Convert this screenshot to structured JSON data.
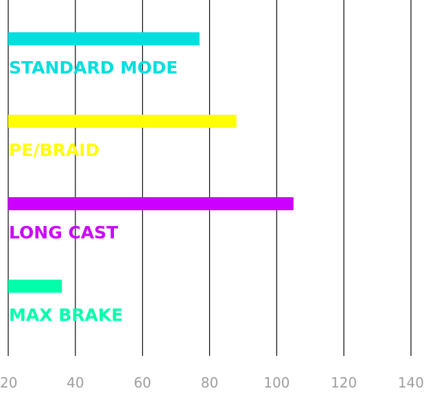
{
  "chart_data": {
    "type": "bar",
    "orientation": "horizontal",
    "categories": [
      "STANDARD MODE",
      "PE/BRAID",
      "LONG CAST",
      "MAX BRAKE"
    ],
    "values": [
      77,
      88,
      105,
      36
    ],
    "colors": [
      "#00dede",
      "#ffff00",
      "#cc00ff",
      "#00ffaa"
    ],
    "xlim": [
      20,
      140
    ],
    "xticks": [
      20,
      40,
      60,
      80,
      100,
      120,
      140
    ],
    "grid": true,
    "legend": "none",
    "title": "",
    "xlabel": "",
    "ylabel": ""
  }
}
